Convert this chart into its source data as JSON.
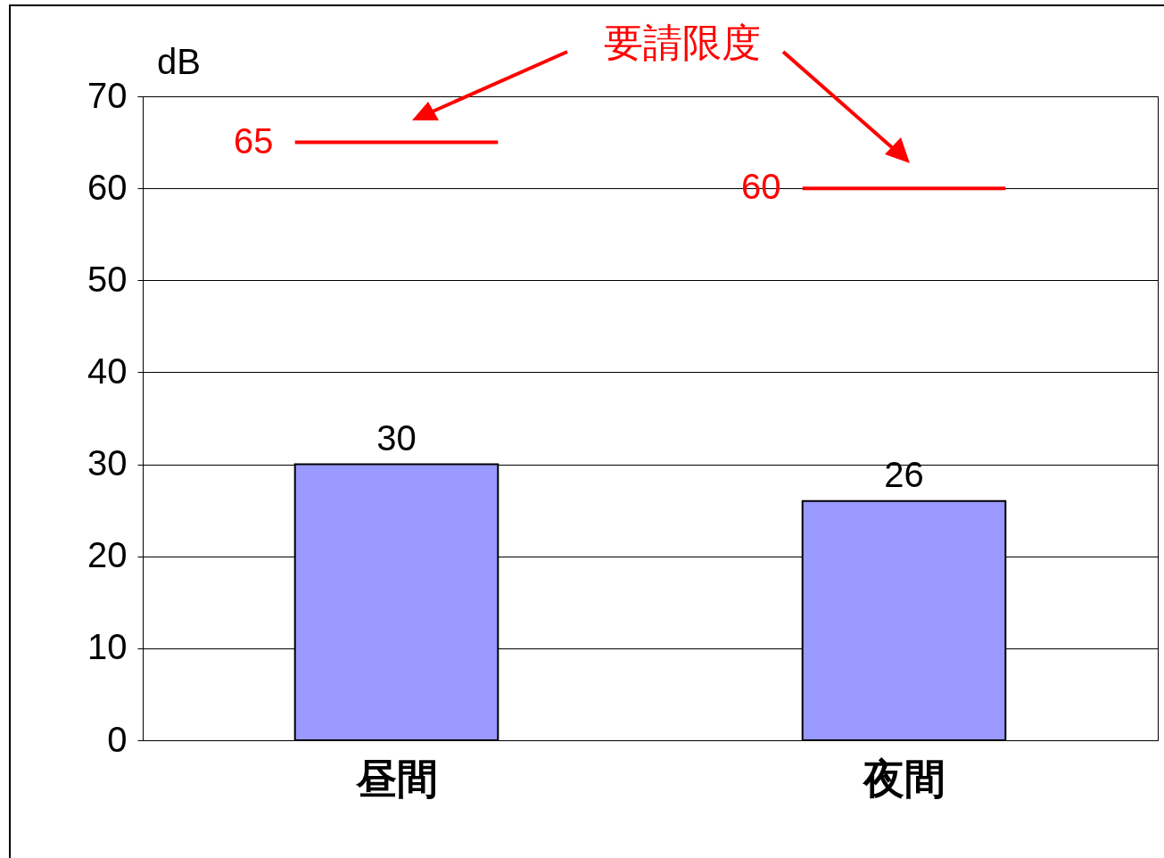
{
  "chart_data": {
    "type": "bar",
    "ylabel": "dB",
    "categories": [
      "昼間",
      "夜間"
    ],
    "series": [
      {
        "color": "#9999ff",
        "values": [
          30,
          26
        ]
      }
    ],
    "ylim": [
      0,
      70
    ],
    "yticks": [
      0,
      10,
      20,
      30,
      40,
      50,
      60,
      70
    ],
    "grid": "y",
    "data_labels": true,
    "ref_lines": [
      {
        "axis": "y",
        "value": 65,
        "label": "65",
        "color": "#ff0000"
      },
      {
        "axis": "y",
        "value": 60,
        "label": "60",
        "color": "#ff0000"
      }
    ],
    "annotations": [
      "要請限度"
    ]
  }
}
